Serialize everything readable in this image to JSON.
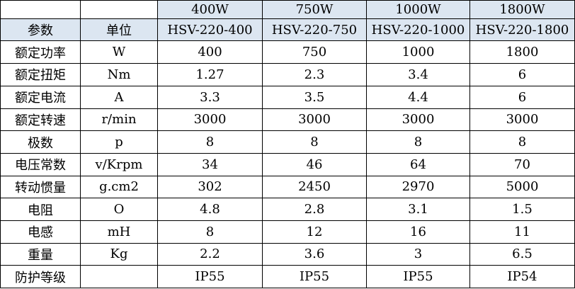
{
  "table": {
    "header_rows": [
      [
        null,
        null,
        "400W",
        "750W",
        "1000W",
        "1800W"
      ],
      [
        "参数",
        "单位",
        "HSV-220-400",
        "HSV-220-750",
        "HSV-220-1000",
        "HSV-220-1800"
      ]
    ],
    "rows": [
      [
        "额定功率",
        "W",
        "400",
        "750",
        "1000",
        "1800"
      ],
      [
        "额定扭矩",
        "Nm",
        "1.27",
        "2.3",
        "3.4",
        "6"
      ],
      [
        "额定电流",
        "A",
        "3.3",
        "3.5",
        "4.4",
        "6"
      ],
      [
        "额定转速",
        "r/min",
        "3000",
        "3000",
        "3000",
        "3000"
      ],
      [
        "极数",
        "p",
        "8",
        "8",
        "8",
        "8"
      ],
      [
        "电压常数",
        "v/Krpm",
        "34",
        "46",
        "64",
        "70"
      ],
      [
        "转动惯量",
        "g.cm2",
        "302",
        "2450",
        "2970",
        "5000"
      ],
      [
        "电阻",
        "O",
        "4.8",
        "2.8",
        "3.1",
        "1.5"
      ],
      [
        "电感",
        "mH",
        "8",
        "12",
        "16",
        "11"
      ],
      [
        "重量",
        "Kg",
        "2.2",
        "3.6",
        "3",
        "6.5"
      ],
      [
        "防护等级",
        null,
        "IP55",
        "IP55",
        "IP55",
        "IP54"
      ]
    ]
  }
}
